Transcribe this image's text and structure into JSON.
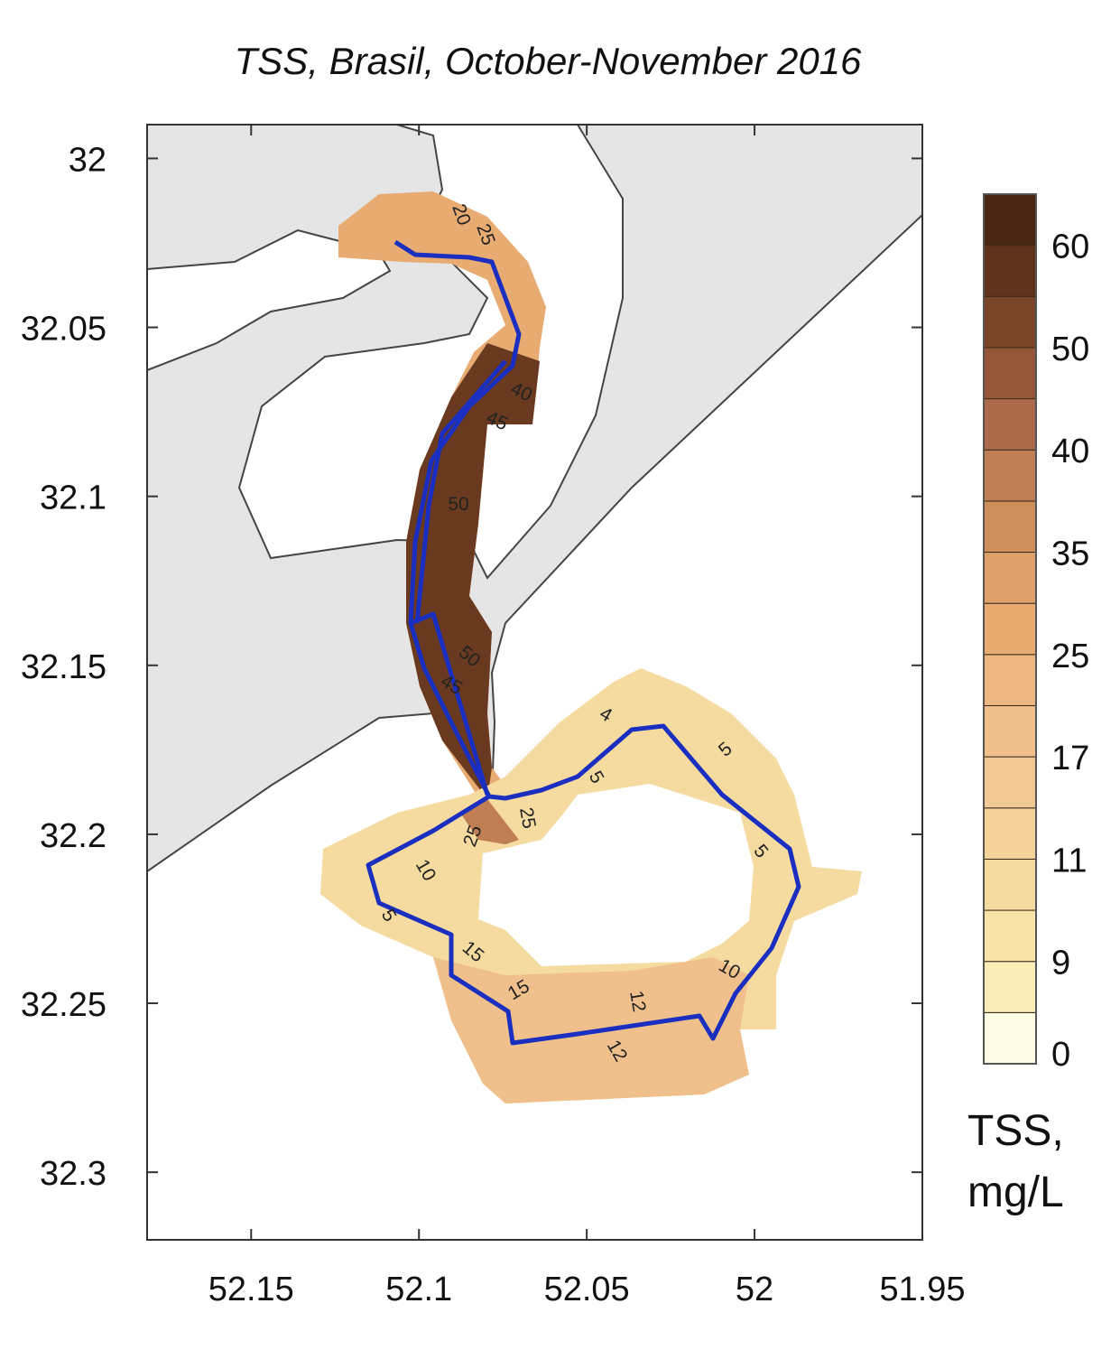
{
  "title": "TSS, Brasil, October-November 2016",
  "map": {
    "xlim": [
      52.181,
      51.95
    ],
    "ylim": [
      31.99,
      32.32
    ],
    "xticks": [
      52.15,
      52.1,
      52.05,
      52,
      51.95
    ],
    "yticks": [
      32,
      32.05,
      32.1,
      32.15,
      32.2,
      32.25,
      32.3
    ],
    "contour_labels": [
      20,
      25,
      40,
      45,
      50,
      50,
      45,
      4,
      5,
      5,
      5,
      25,
      25,
      10,
      5,
      15,
      15,
      12,
      10,
      12
    ],
    "track_color": "#1a2fbf"
  },
  "colorbar": {
    "ticks": [
      0,
      9,
      11,
      17,
      25,
      35,
      40,
      50,
      60
    ],
    "colors": [
      "#fffce6",
      "#fbedb6",
      "#f8e4a8",
      "#f6dba0",
      "#f4d29a",
      "#f2c995",
      "#f0c08c",
      "#edb782",
      "#e8ab72",
      "#dfa06a",
      "#cf8f5c",
      "#c07e55",
      "#ad6a4a",
      "#96563a",
      "#7a4429",
      "#5f331c",
      "#4a2712"
    ],
    "title_lines": [
      "TSS,",
      "mg/L"
    ]
  }
}
